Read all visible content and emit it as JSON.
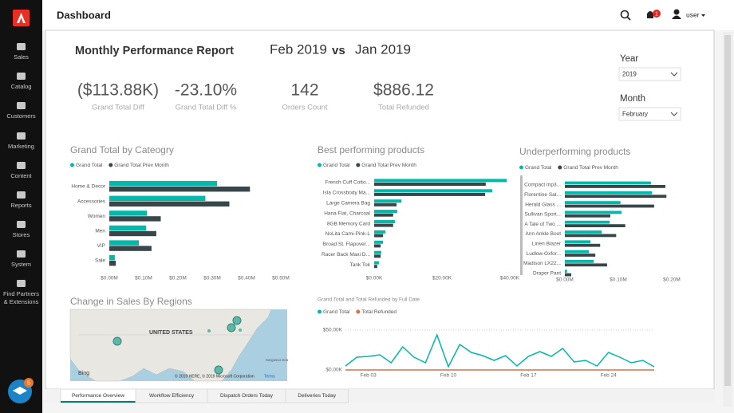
{
  "sidebar": {
    "items": [
      "Sales",
      "Catalog",
      "Customers",
      "Marketing",
      "Content",
      "Reports",
      "Stores",
      "System"
    ],
    "extra_lines": [
      "Find Partners",
      "& Extensions"
    ],
    "help_badge": "5"
  },
  "header": {
    "title": "Dashboard",
    "notifications": "1",
    "user": "user"
  },
  "report": {
    "title": "Monthly Performance Report",
    "period": "Feb 2019",
    "vs": "vs",
    "compare": "Jan 2019"
  },
  "kpis": [
    {
      "value": "($113.88K)",
      "label": "Grand Total Diff"
    },
    {
      "value": "-23.10%",
      "label": "Grand Total Diff %"
    },
    {
      "value": "142",
      "label": "Orders Count"
    },
    {
      "value": "$886.12",
      "label": "Total Refunded"
    }
  ],
  "filters": [
    {
      "label": "Year",
      "value": "2019"
    },
    {
      "label": "Month",
      "value": "February"
    }
  ],
  "charts": [
    {
      "type": "barh",
      "title": "Grand Total by Cateogry",
      "categories": [
        "Home & Decor",
        "Accessories",
        "Women",
        "Men",
        "VIP",
        "Sale"
      ],
      "series": [
        {
          "name": "Grand Total",
          "color": "#01b8aa",
          "values": [
            0.314,
            0.28,
            0.11,
            0.107,
            0.086,
            0.016
          ]
        },
        {
          "name": "Grand Total Prev Month",
          "color": "#374649",
          "values": [
            0.41,
            0.35,
            0.15,
            0.137,
            0.123,
            0.019
          ]
        }
      ],
      "xlim": [
        0,
        0.5
      ],
      "xticks": [
        {
          "value": 0,
          "label": "$0.00M"
        },
        {
          "value": 0.1,
          "label": "$0.10M"
        },
        {
          "value": 0.2,
          "label": "$0.20M"
        },
        {
          "value": 0.3,
          "label": "$0.30M"
        },
        {
          "value": 0.4,
          "label": "$0.40M"
        },
        {
          "value": 0.5,
          "label": "$0.50M"
        }
      ]
    },
    {
      "type": "barh",
      "title": "Best performing products",
      "categories": [
        "French Cuff Cotto...",
        "Isla Crossbody Ma...",
        "Large Camera Bag",
        "Hana Flat, Charcoal",
        "8GB Memory Card",
        "NoLita Cami-Pink-L",
        "Broad St. Flapover...",
        "Racer Back Maxi D...",
        "Tank Tok"
      ],
      "series": [
        {
          "name": "Grand Total",
          "color": "#01b8aa",
          "values": [
            39.1,
            34.8,
            8.0,
            6.8,
            6.1,
            3.3,
            2.6,
            2.1,
            1.4
          ]
        },
        {
          "name": "Grand Total Prev Month",
          "color": "#374649",
          "values": [
            32.9,
            32.7,
            6.6,
            5.6,
            5.6,
            2.6,
            1.9,
            1.9,
            0.9
          ]
        }
      ],
      "xlim": [
        0,
        40
      ],
      "xticks": [
        {
          "value": 0,
          "label": "$0.00K"
        },
        {
          "value": 20,
          "label": "$20.00K"
        },
        {
          "value": 40,
          "label": "$40.00K"
        }
      ]
    },
    {
      "type": "barh",
      "title": "Underperforming products",
      "categories": [
        "Compact mp3...",
        "Florentine Sat...",
        "Herald Glass ...",
        "Sullivan Sport...",
        "A Tale of Two ...",
        "Ann Ankle Boot",
        "Linen Blazer",
        "Ludlow Oxfor...",
        "Madison LX22...",
        "Draper Pant"
      ],
      "series": [
        {
          "name": "Grand Total",
          "color": "#01b8aa",
          "values": [
            0.161,
            0.163,
            0.104,
            0.106,
            0.084,
            0.069,
            0.048,
            0.045,
            0.054,
            0.004
          ]
        },
        {
          "name": "Grand Total Prev Month",
          "color": "#374649",
          "values": [
            0.188,
            0.19,
            0.167,
            0.085,
            0.113,
            0.096,
            0.066,
            0.057,
            0.079,
            0.012
          ]
        }
      ],
      "xlim": [
        0,
        0.2
      ],
      "xticks": [
        {
          "value": 0,
          "label": "$0.00M"
        },
        {
          "value": 0.1,
          "label": "$0.10M"
        },
        {
          "value": 0.2,
          "label": "$0.20M"
        }
      ]
    },
    {
      "type": "line",
      "title": "Grand Total and Total Refunded by Full Date",
      "x": [
        "Feb 01",
        "Feb 02",
        "Feb 03",
        "Feb 04",
        "Feb 05",
        "Feb 06",
        "Feb 07",
        "Feb 08",
        "Feb 09",
        "Feb 10",
        "Feb 11",
        "Feb 12",
        "Feb 13",
        "Feb 14",
        "Feb 15",
        "Feb 16",
        "Feb 17",
        "Feb 18",
        "Feb 19",
        "Feb 20",
        "Feb 21",
        "Feb 22",
        "Feb 23",
        "Feb 24",
        "Feb 25",
        "Feb 26",
        "Feb 27",
        "Feb 28"
      ],
      "xtick_indices": [
        2,
        9,
        16,
        23
      ],
      "series": [
        {
          "name": "Grand Total",
          "color": "#01b8aa",
          "values": [
            5,
            16,
            17,
            19,
            9,
            29,
            16,
            9,
            44,
            4,
            32,
            22,
            18,
            12,
            18,
            5,
            17,
            23,
            17,
            27,
            10,
            12,
            5,
            22,
            16,
            9,
            12,
            4
          ]
        },
        {
          "name": "Total Refunded",
          "color": "#d9704b",
          "values": [
            0,
            0,
            0,
            0,
            0,
            0,
            0,
            0,
            0,
            0,
            0,
            0,
            0,
            0,
            0,
            0,
            0,
            0,
            0,
            0,
            0,
            0,
            0,
            0,
            0,
            0,
            0,
            0
          ]
        }
      ],
      "ylim": [
        0,
        50
      ],
      "yticks": [
        {
          "value": 0,
          "label": "$0.00K"
        },
        {
          "value": 50,
          "label": "$50.00K"
        }
      ],
      "grid": true
    }
  ],
  "map": {
    "title": "Change in Sales By Regions",
    "country": "UNITED STATES",
    "sea": "Sargasso Sea",
    "brand": "Bing",
    "copyright": "© 2019 HERE, © 2019 Microsoft Corporation",
    "terms": "Terms"
  },
  "tabs": [
    "Performance Overview",
    "Workflow Efficiency",
    "Dispatch Orders Today",
    "Deliveries Today"
  ]
}
